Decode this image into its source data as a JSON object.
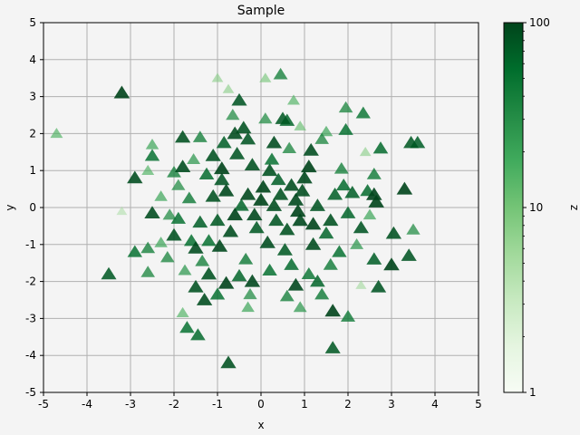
{
  "chart_data": {
    "type": "scatter",
    "title": "Sample",
    "xlabel": "x",
    "ylabel": "y",
    "xlim": [
      -5,
      5
    ],
    "ylim": [
      -5,
      5
    ],
    "xticks": [
      "-5",
      "-4",
      "-3",
      "-2",
      "-1",
      "0",
      "1",
      "2",
      "3",
      "4",
      "5"
    ],
    "yticks": [
      "-5",
      "-4",
      "-3",
      "-2",
      "-1",
      "0",
      "1",
      "2",
      "3",
      "4",
      "5"
    ],
    "grid": true,
    "marker": "triangle-up",
    "colormap": "Greens",
    "colorbar": {
      "label": "z",
      "scale": "log",
      "range": [
        1,
        100
      ],
      "ticks": [
        "1",
        "10",
        "100"
      ]
    },
    "points": [
      {
        "x": -4.7,
        "y": 2.0,
        "z": 15
      },
      {
        "x": -3.2,
        "y": 3.1,
        "z": 100
      },
      {
        "x": -3.5,
        "y": -1.8,
        "z": 75
      },
      {
        "x": -2.9,
        "y": 0.8,
        "z": 90
      },
      {
        "x": -2.9,
        "y": -1.2,
        "z": 55
      },
      {
        "x": -2.6,
        "y": -1.1,
        "z": 40
      },
      {
        "x": -2.6,
        "y": -1.75,
        "z": 35
      },
      {
        "x": -2.5,
        "y": 1.4,
        "z": 55
      },
      {
        "x": -2.5,
        "y": -0.15,
        "z": 90
      },
      {
        "x": -2.5,
        "y": 1.7,
        "z": 20
      },
      {
        "x": -2.6,
        "y": 1.0,
        "z": 15
      },
      {
        "x": -2.1,
        "y": -0.2,
        "z": 30
      },
      {
        "x": -2.0,
        "y": -0.75,
        "z": 85
      },
      {
        "x": -1.9,
        "y": -0.3,
        "z": 55
      },
      {
        "x": -1.8,
        "y": 1.9,
        "z": 85
      },
      {
        "x": -1.8,
        "y": 1.1,
        "z": 90
      },
      {
        "x": -1.75,
        "y": -1.7,
        "z": 25
      },
      {
        "x": -1.7,
        "y": -3.25,
        "z": 55
      },
      {
        "x": -1.5,
        "y": -1.1,
        "z": 90
      },
      {
        "x": -1.45,
        "y": -3.45,
        "z": 60
      },
      {
        "x": -1.4,
        "y": 1.9,
        "z": 40
      },
      {
        "x": -1.5,
        "y": -2.15,
        "z": 85
      },
      {
        "x": -1.2,
        "y": -0.9,
        "z": 55
      },
      {
        "x": -1.3,
        "y": -2.5,
        "z": 90
      },
      {
        "x": -1.2,
        "y": -1.8,
        "z": 85
      },
      {
        "x": -1.1,
        "y": 1.4,
        "z": 85
      },
      {
        "x": -1.0,
        "y": -2.35,
        "z": 55
      },
      {
        "x": -0.9,
        "y": 1.05,
        "z": 100
      },
      {
        "x": -0.75,
        "y": -4.2,
        "z": 85
      },
      {
        "x": -0.8,
        "y": -2.05,
        "z": 100
      },
      {
        "x": -0.6,
        "y": 2.0,
        "z": 90
      },
      {
        "x": -0.5,
        "y": 2.9,
        "z": 80
      },
      {
        "x": -0.3,
        "y": 1.85,
        "z": 80
      },
      {
        "x": -0.4,
        "y": 2.15,
        "z": 85
      },
      {
        "x": -0.2,
        "y": -2.0,
        "z": 95
      },
      {
        "x": 0.1,
        "y": 2.4,
        "z": 30
      },
      {
        "x": 0.2,
        "y": 1.0,
        "z": 85
      },
      {
        "x": 0.3,
        "y": 1.75,
        "z": 90
      },
      {
        "x": 0.5,
        "y": 2.4,
        "z": 75
      },
      {
        "x": 0.6,
        "y": 2.35,
        "z": 65
      },
      {
        "x": 0.45,
        "y": 3.6,
        "z": 40
      },
      {
        "x": 0.7,
        "y": 0.6,
        "z": 90
      },
      {
        "x": 0.8,
        "y": -2.1,
        "z": 95
      },
      {
        "x": 0.85,
        "y": -0.1,
        "z": 100
      },
      {
        "x": 1.1,
        "y": 1.1,
        "z": 100
      },
      {
        "x": 1.2,
        "y": -1.0,
        "z": 90
      },
      {
        "x": 1.3,
        "y": -2.0,
        "z": 65
      },
      {
        "x": 1.4,
        "y": -2.35,
        "z": 45
      },
      {
        "x": 1.6,
        "y": -0.35,
        "z": 85
      },
      {
        "x": 1.65,
        "y": -2.8,
        "z": 100
      },
      {
        "x": 1.65,
        "y": -3.8,
        "z": 75
      },
      {
        "x": 1.9,
        "y": 0.6,
        "z": 60
      },
      {
        "x": 1.95,
        "y": 2.7,
        "z": 35
      },
      {
        "x": 1.95,
        "y": 2.1,
        "z": 55
      },
      {
        "x": 2.0,
        "y": -2.95,
        "z": 45
      },
      {
        "x": 2.1,
        "y": 0.4,
        "z": 70
      },
      {
        "x": 2.3,
        "y": -0.55,
        "z": 80
      },
      {
        "x": 2.35,
        "y": 2.55,
        "z": 50
      },
      {
        "x": 2.45,
        "y": 0.45,
        "z": 60
      },
      {
        "x": 2.5,
        "y": -0.2,
        "z": 20
      },
      {
        "x": 2.6,
        "y": 0.35,
        "z": 100
      },
      {
        "x": 2.65,
        "y": 0.15,
        "z": 100
      },
      {
        "x": 2.6,
        "y": -1.4,
        "z": 70
      },
      {
        "x": 2.7,
        "y": -2.15,
        "z": 80
      },
      {
        "x": 2.75,
        "y": 1.6,
        "z": 60
      },
      {
        "x": 3.0,
        "y": -1.55,
        "z": 100
      },
      {
        "x": 3.05,
        "y": -0.7,
        "z": 85
      },
      {
        "x": 3.3,
        "y": 0.5,
        "z": 100
      },
      {
        "x": 3.4,
        "y": -1.3,
        "z": 80
      },
      {
        "x": 3.45,
        "y": 1.75,
        "z": 75
      },
      {
        "x": 3.5,
        "y": -0.6,
        "z": 30
      },
      {
        "x": 3.6,
        "y": 1.75,
        "z": 70
      },
      {
        "x": 2.4,
        "y": 1.5,
        "z": 8
      },
      {
        "x": 2.3,
        "y": -2.1,
        "z": 6
      },
      {
        "x": -3.2,
        "y": -0.1,
        "z": 5
      },
      {
        "x": -0.75,
        "y": 3.2,
        "z": 8
      },
      {
        "x": 0.1,
        "y": 3.5,
        "z": 10
      },
      {
        "x": -1.0,
        "y": 3.5,
        "z": 8
      },
      {
        "x": 0.9,
        "y": 2.2,
        "z": 12
      },
      {
        "x": -0.3,
        "y": -2.7,
        "z": 20
      },
      {
        "x": 0.9,
        "y": -2.7,
        "z": 25
      },
      {
        "x": 1.5,
        "y": 2.05,
        "z": 20
      },
      {
        "x": -2.3,
        "y": -0.95,
        "z": 20
      },
      {
        "x": -1.8,
        "y": -2.85,
        "z": 15
      },
      {
        "x": -0.3,
        "y": 0.35,
        "z": 95
      },
      {
        "x": 0.05,
        "y": 0.55,
        "z": 100
      },
      {
        "x": 0.3,
        "y": 0.05,
        "z": 90
      },
      {
        "x": -0.6,
        "y": -0.2,
        "z": 100
      },
      {
        "x": 0.6,
        "y": -0.6,
        "z": 85
      },
      {
        "x": -0.9,
        "y": 0.75,
        "z": 80
      },
      {
        "x": 0.8,
        "y": 0.2,
        "z": 95
      },
      {
        "x": -0.1,
        "y": -0.55,
        "z": 75
      },
      {
        "x": 0.4,
        "y": 0.75,
        "z": 70
      },
      {
        "x": -0.45,
        "y": 0.05,
        "z": 65
      },
      {
        "x": 0.15,
        "y": -0.95,
        "z": 90
      },
      {
        "x": 1.0,
        "y": 0.8,
        "z": 95
      },
      {
        "x": -1.1,
        "y": 0.3,
        "z": 85
      },
      {
        "x": 1.3,
        "y": 0.05,
        "z": 80
      },
      {
        "x": -0.7,
        "y": -0.65,
        "z": 90
      },
      {
        "x": 0.55,
        "y": -1.15,
        "z": 75
      },
      {
        "x": -0.2,
        "y": 1.15,
        "z": 85
      },
      {
        "x": 1.5,
        "y": -0.7,
        "z": 65
      },
      {
        "x": -1.4,
        "y": -0.4,
        "z": 70
      },
      {
        "x": 0.9,
        "y": -0.35,
        "z": 95
      },
      {
        "x": -0.55,
        "y": 1.45,
        "z": 80
      },
      {
        "x": 0.25,
        "y": 1.3,
        "z": 55
      },
      {
        "x": -0.95,
        "y": -1.05,
        "z": 95
      },
      {
        "x": 1.15,
        "y": 1.55,
        "z": 90
      },
      {
        "x": -1.25,
        "y": 0.9,
        "z": 60
      },
      {
        "x": 0.7,
        "y": -1.55,
        "z": 60
      },
      {
        "x": -0.35,
        "y": -1.4,
        "z": 45
      },
      {
        "x": 1.7,
        "y": 0.35,
        "z": 70
      },
      {
        "x": -1.65,
        "y": 0.25,
        "z": 45
      },
      {
        "x": 0.0,
        "y": 0.2,
        "z": 100
      },
      {
        "x": 0.45,
        "y": 0.35,
        "z": 85
      },
      {
        "x": -0.15,
        "y": -0.2,
        "z": 95
      },
      {
        "x": 0.35,
        "y": -0.35,
        "z": 80
      },
      {
        "x": -0.8,
        "y": 0.45,
        "z": 95
      },
      {
        "x": 1.2,
        "y": -0.45,
        "z": 100
      },
      {
        "x": -1.0,
        "y": -0.35,
        "z": 75
      },
      {
        "x": 0.65,
        "y": 1.6,
        "z": 35
      },
      {
        "x": -1.55,
        "y": 1.3,
        "z": 25
      },
      {
        "x": 1.8,
        "y": -1.2,
        "z": 55
      },
      {
        "x": -1.9,
        "y": 0.6,
        "z": 30
      },
      {
        "x": 1.85,
        "y": 1.05,
        "z": 40
      },
      {
        "x": -2.15,
        "y": -1.35,
        "z": 35
      },
      {
        "x": 2.2,
        "y": -1.0,
        "z": 25
      },
      {
        "x": -0.65,
        "y": 2.5,
        "z": 30
      },
      {
        "x": 0.75,
        "y": 2.9,
        "z": 15
      },
      {
        "x": -0.25,
        "y": -2.35,
        "z": 30
      },
      {
        "x": 1.1,
        "y": -1.8,
        "z": 50
      },
      {
        "x": 1.4,
        "y": 1.85,
        "z": 35
      },
      {
        "x": -1.35,
        "y": -1.45,
        "z": 40
      },
      {
        "x": 0.2,
        "y": -1.7,
        "z": 55
      },
      {
        "x": -0.5,
        "y": -1.85,
        "z": 65
      },
      {
        "x": 2.6,
        "y": 0.9,
        "z": 45
      },
      {
        "x": -2.3,
        "y": 0.3,
        "z": 20
      },
      {
        "x": 0.95,
        "y": 0.45,
        "z": 90
      },
      {
        "x": -0.85,
        "y": 1.75,
        "z": 70
      },
      {
        "x": 1.6,
        "y": -1.55,
        "z": 45
      },
      {
        "x": -1.6,
        "y": -0.9,
        "z": 55
      },
      {
        "x": 2.0,
        "y": -0.15,
        "z": 65
      },
      {
        "x": -2.0,
        "y": 0.95,
        "z": 40
      },
      {
        "x": 0.6,
        "y": -2.4,
        "z": 40
      }
    ]
  }
}
